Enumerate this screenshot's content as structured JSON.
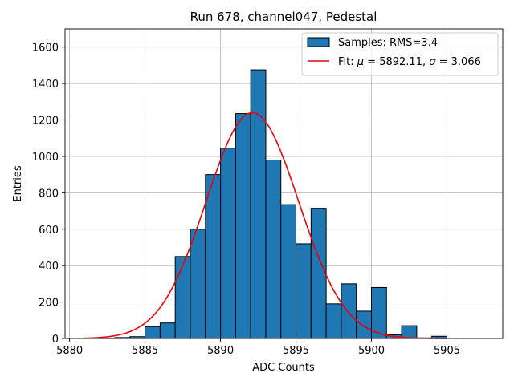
{
  "chart_data": {
    "type": "bar",
    "title": "Run 678, channel047, Pedestal",
    "xlabel": "ADC Counts",
    "ylabel": "Entries",
    "xlim": [
      5879.7,
      5908.7
    ],
    "ylim": [
      0,
      1700
    ],
    "xticks": [
      5880,
      5885,
      5890,
      5895,
      5900,
      5905
    ],
    "yticks": [
      0,
      200,
      400,
      600,
      800,
      1000,
      1200,
      1400,
      1600
    ],
    "grid": true,
    "legend_position": "top-right",
    "bin_width": 1,
    "histogram": {
      "name": "Samples: RMS=3.4",
      "color": "#1f77b4",
      "edge_color": "#000000",
      "bins": [
        {
          "left": 5882,
          "value": 2
        },
        {
          "left": 5883,
          "value": 5
        },
        {
          "left": 5884,
          "value": 10
        },
        {
          "left": 5885,
          "value": 65
        },
        {
          "left": 5886,
          "value": 85
        },
        {
          "left": 5887,
          "value": 450
        },
        {
          "left": 5888,
          "value": 600
        },
        {
          "left": 5889,
          "value": 900
        },
        {
          "left": 5890,
          "value": 1045
        },
        {
          "left": 5891,
          "value": 1235
        },
        {
          "left": 5892,
          "value": 1475
        },
        {
          "left": 5893,
          "value": 980
        },
        {
          "left": 5894,
          "value": 735
        },
        {
          "left": 5895,
          "value": 520
        },
        {
          "left": 5896,
          "value": 715
        },
        {
          "left": 5897,
          "value": 190
        },
        {
          "left": 5898,
          "value": 300
        },
        {
          "left": 5899,
          "value": 150
        },
        {
          "left": 5900,
          "value": 280
        },
        {
          "left": 5901,
          "value": 20
        },
        {
          "left": 5902,
          "value": 70
        },
        {
          "left": 5903,
          "value": 3
        },
        {
          "left": 5904,
          "value": 12
        }
      ]
    },
    "fit": {
      "name": "Fit: μ = 5892.11, σ = 3.066",
      "label_prefix": "Fit: ",
      "label_mu_symbol": "μ",
      "label_mu_text": " = 5892.11, ",
      "label_sigma_symbol": "σ",
      "label_sigma_text": " = 3.066",
      "color": "#e8000b",
      "mu": 5892.11,
      "sigma": 3.066,
      "amplitude": 1240,
      "x_range": [
        5881,
        5905
      ]
    }
  }
}
